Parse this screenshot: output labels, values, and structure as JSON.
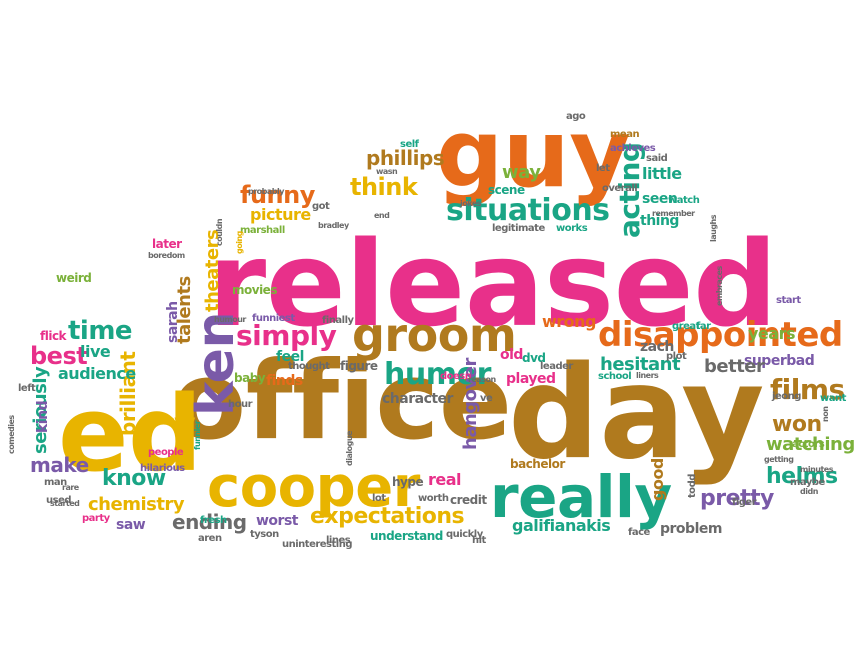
{
  "colors": {
    "pink": "#e8308a",
    "brown": "#b07a1e",
    "yellow": "#e8b400",
    "orange": "#e66a1a",
    "teal": "#1aa585",
    "purple": "#7a5aa8",
    "green": "#7bb13a",
    "gray": "#6a6a6a"
  },
  "words": [
    {
      "text": "released",
      "color": "pink"
    },
    {
      "text": "office",
      "color": "brown"
    },
    {
      "text": "day",
      "color": "brown"
    },
    {
      "text": "ed",
      "color": "yellow"
    },
    {
      "text": "guy",
      "color": "orange"
    },
    {
      "text": "really",
      "color": "teal"
    },
    {
      "text": "cooper",
      "color": "yellow"
    },
    {
      "text": "groom",
      "color": "brown"
    },
    {
      "text": "ken",
      "color": "purple"
    },
    {
      "text": "disappointed",
      "color": "orange"
    },
    {
      "text": "situations",
      "color": "teal"
    },
    {
      "text": "expectations",
      "color": "yellow"
    },
    {
      "text": "humor",
      "color": "teal"
    },
    {
      "text": "time",
      "color": "teal"
    },
    {
      "text": "simply",
      "color": "pink"
    },
    {
      "text": "know",
      "color": "teal"
    },
    {
      "text": "think",
      "color": "yellow"
    },
    {
      "text": "funny",
      "color": "orange"
    },
    {
      "text": "films",
      "color": "brown"
    },
    {
      "text": "phillips",
      "color": "brown"
    },
    {
      "text": "acting",
      "color": "teal"
    },
    {
      "text": "pretty",
      "color": "purple"
    },
    {
      "text": "best",
      "color": "pink"
    },
    {
      "text": "ending",
      "color": "gray"
    },
    {
      "text": "make",
      "color": "purple"
    },
    {
      "text": "won",
      "color": "brown"
    },
    {
      "text": "watching",
      "color": "green"
    },
    {
      "text": "helms",
      "color": "teal"
    },
    {
      "text": "galifianakis",
      "color": "teal"
    },
    {
      "text": "chemistry",
      "color": "yellow"
    },
    {
      "text": "seriously",
      "color": "teal"
    },
    {
      "text": "brilliant",
      "color": "yellow"
    },
    {
      "text": "hangover",
      "color": "purple"
    },
    {
      "text": "talents",
      "color": "brown"
    },
    {
      "text": "theaters",
      "color": "yellow"
    },
    {
      "text": "superbad",
      "color": "purple"
    },
    {
      "text": "better",
      "color": "gray"
    },
    {
      "text": "hesitant",
      "color": "teal"
    },
    {
      "text": "audience",
      "color": "teal"
    },
    {
      "text": "little",
      "color": "teal"
    },
    {
      "text": "years",
      "color": "green"
    },
    {
      "text": "character",
      "color": "gray"
    },
    {
      "text": "picture",
      "color": "yellow"
    },
    {
      "text": "way",
      "color": "green"
    },
    {
      "text": "wrong",
      "color": "orange"
    },
    {
      "text": "zach",
      "color": "gray"
    },
    {
      "text": "real",
      "color": "pink"
    },
    {
      "text": "worst",
      "color": "purple"
    },
    {
      "text": "live",
      "color": "teal"
    },
    {
      "text": "sarah",
      "color": "purple"
    },
    {
      "text": "feel",
      "color": "teal"
    },
    {
      "text": "finds",
      "color": "orange"
    },
    {
      "text": "good",
      "color": "brown"
    },
    {
      "text": "old",
      "color": "pink"
    },
    {
      "text": "kind",
      "color": "purple"
    },
    {
      "text": "problem",
      "color": "gray"
    },
    {
      "text": "understand",
      "color": "teal"
    },
    {
      "text": "played",
      "color": "pink"
    },
    {
      "text": "saw",
      "color": "purple"
    },
    {
      "text": "thing",
      "color": "teal"
    },
    {
      "text": "seen",
      "color": "teal"
    },
    {
      "text": "bachelor",
      "color": "brown"
    },
    {
      "text": "baby",
      "color": "green"
    },
    {
      "text": "tyson",
      "color": "gray"
    },
    {
      "text": "hype",
      "color": "gray"
    },
    {
      "text": "credit",
      "color": "gray"
    },
    {
      "text": "dvd",
      "color": "teal"
    },
    {
      "text": "people",
      "color": "pink"
    },
    {
      "text": "later",
      "color": "pink"
    },
    {
      "text": "weird",
      "color": "green"
    },
    {
      "text": "flick",
      "color": "pink"
    },
    {
      "text": "movies",
      "color": "green"
    },
    {
      "text": "funniest",
      "color": "purple"
    },
    {
      "text": "figure",
      "color": "gray"
    },
    {
      "text": "thought",
      "color": "gray"
    },
    {
      "text": "got",
      "color": "gray"
    },
    {
      "text": "marshall",
      "color": "green"
    },
    {
      "text": "scene",
      "color": "teal"
    },
    {
      "text": "overall",
      "color": "gray"
    },
    {
      "text": "works",
      "color": "teal"
    },
    {
      "text": "legitimate",
      "color": "gray"
    },
    {
      "text": "let",
      "color": "gray"
    },
    {
      "text": "said",
      "color": "gray"
    },
    {
      "text": "watch",
      "color": "teal"
    },
    {
      "text": "mean",
      "color": "brown"
    },
    {
      "text": "achieves",
      "color": "purple"
    },
    {
      "text": "self",
      "color": "teal"
    },
    {
      "text": "ago",
      "color": "gray"
    },
    {
      "text": "start",
      "color": "purple"
    },
    {
      "text": "great",
      "color": "teal"
    },
    {
      "text": "far",
      "color": "teal"
    },
    {
      "text": "finally",
      "color": "gray"
    },
    {
      "text": "leader",
      "color": "gray"
    },
    {
      "text": "school",
      "color": "teal"
    },
    {
      "text": "plot",
      "color": "gray"
    },
    {
      "text": "jeong",
      "color": "gray"
    },
    {
      "text": "want",
      "color": "teal"
    },
    {
      "text": "actors",
      "color": "green"
    },
    {
      "text": "maybe",
      "color": "gray"
    },
    {
      "text": "figer",
      "color": "gray"
    },
    {
      "text": "todd",
      "color": "gray"
    },
    {
      "text": "face",
      "color": "gray"
    },
    {
      "text": "worth",
      "color": "gray"
    },
    {
      "text": "lines",
      "color": "gray"
    },
    {
      "text": "fresh",
      "color": "teal"
    },
    {
      "text": "hilarious",
      "color": "purple"
    },
    {
      "text": "party",
      "color": "pink"
    },
    {
      "text": "used",
      "color": "gray"
    },
    {
      "text": "man",
      "color": "gray"
    },
    {
      "text": "left",
      "color": "gray"
    },
    {
      "text": "hour",
      "color": "gray"
    },
    {
      "text": "away",
      "color": "yellow"
    },
    {
      "text": "doesn",
      "color": "pink"
    },
    {
      "text": "ve",
      "color": "gray"
    },
    {
      "text": "lot",
      "color": "gray"
    },
    {
      "text": "hit",
      "color": "gray"
    },
    {
      "text": "quickly",
      "color": "gray"
    },
    {
      "text": "aren",
      "color": "gray"
    },
    {
      "text": "uninteresting",
      "color": "gray"
    },
    {
      "text": "remember",
      "color": "gray"
    },
    {
      "text": "jokes",
      "color": "gray"
    },
    {
      "text": "end",
      "color": "gray"
    },
    {
      "text": "bradley",
      "color": "gray"
    },
    {
      "text": "wasn",
      "color": "gray"
    },
    {
      "text": "couldn",
      "color": "gray"
    },
    {
      "text": "going",
      "color": "yellow"
    },
    {
      "text": "probably",
      "color": "gray"
    },
    {
      "text": "boredom",
      "color": "gray"
    },
    {
      "text": "humour",
      "color": "gray"
    },
    {
      "text": "rare",
      "color": "gray"
    },
    {
      "text": "started",
      "color": "gray"
    },
    {
      "text": "comedies",
      "color": "gray"
    },
    {
      "text": "funnier",
      "color": "teal"
    },
    {
      "text": "dialogue",
      "color": "gray"
    },
    {
      "text": "laughs",
      "color": "gray"
    },
    {
      "text": "embraces",
      "color": "gray"
    },
    {
      "text": "liners",
      "color": "gray"
    },
    {
      "text": "reason",
      "color": "gray"
    },
    {
      "text": "getting",
      "color": "gray"
    },
    {
      "text": "didn",
      "color": "gray"
    },
    {
      "text": "minutes",
      "color": "gray"
    },
    {
      "text": "non",
      "color": "gray"
    },
    {
      "text": "stop",
      "color": "gray"
    }
  ]
}
